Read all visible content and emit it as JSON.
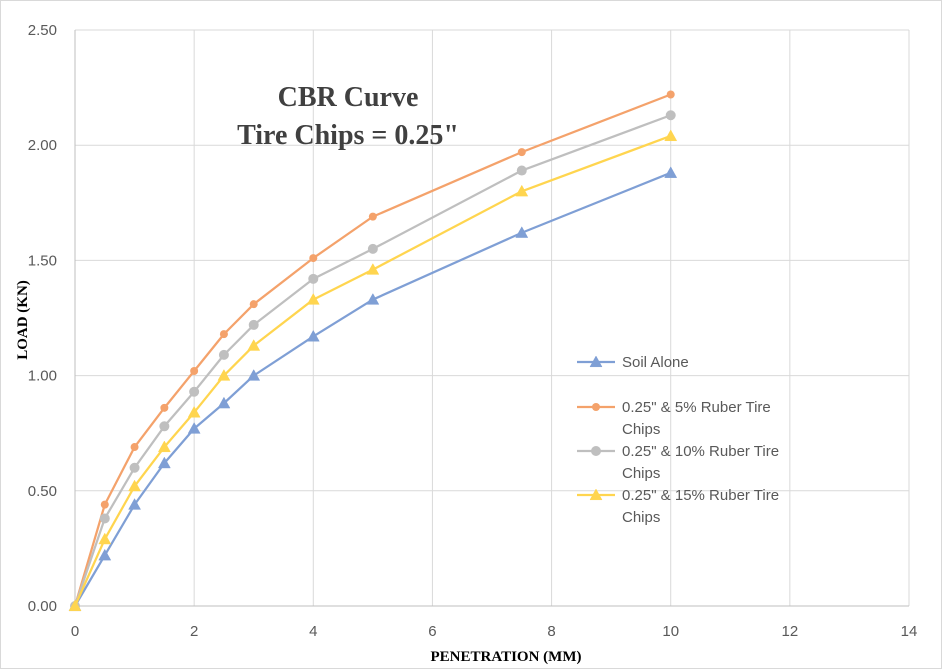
{
  "chart_data": {
    "type": "line",
    "title": [
      "CBR Curve",
      "Tire Chips = 0.25\""
    ],
    "xlabel": "PENETRATION (MM)",
    "ylabel": "LOAD  (KN)",
    "xlim": [
      0,
      14
    ],
    "ylim": [
      0,
      2.5
    ],
    "xticks": [
      "0",
      "2",
      "4",
      "6",
      "8",
      "10",
      "12",
      "14"
    ],
    "yticks": [
      "0.00",
      "0.50",
      "1.00",
      "1.50",
      "2.00",
      "2.50"
    ],
    "grid": true,
    "legend_position": "right",
    "x": [
      0,
      0.5,
      1,
      1.5,
      2,
      2.5,
      3,
      4,
      5,
      7.5,
      10
    ],
    "series": [
      {
        "name": "Soil Alone",
        "legend_lines": [
          "Soil Alone"
        ],
        "color": "#7f9fd5",
        "marker": "triangle",
        "values": [
          0,
          0.22,
          0.44,
          0.62,
          0.77,
          0.88,
          1.0,
          1.17,
          1.33,
          1.62,
          1.88
        ]
      },
      {
        "name": "0.25\" & 5% Ruber Tire Chips",
        "legend_lines": [
          "0.25\" & 5% Ruber Tire",
          "Chips"
        ],
        "color": "#f4a26b",
        "marker": "diamond",
        "values": [
          0,
          0.44,
          0.69,
          0.86,
          1.02,
          1.18,
          1.31,
          1.51,
          1.69,
          1.97,
          2.22
        ]
      },
      {
        "name": "0.25\" & 10% Ruber Tire Chips",
        "legend_lines": [
          "0.25\" & 10% Ruber Tire",
          "Chips"
        ],
        "color": "#bfbfbf",
        "marker": "circle",
        "values": [
          0,
          0.38,
          0.6,
          0.78,
          0.93,
          1.09,
          1.22,
          1.42,
          1.55,
          1.89,
          2.13
        ]
      },
      {
        "name": "0.25\" & 15% Ruber Tire Chips",
        "legend_lines": [
          "0.25\" & 15% Ruber Tire",
          "Chips"
        ],
        "color": "#ffd54f",
        "marker": "triangle",
        "values": [
          0,
          0.29,
          0.52,
          0.69,
          0.84,
          1.0,
          1.13,
          1.33,
          1.46,
          1.8,
          2.04
        ]
      }
    ]
  }
}
